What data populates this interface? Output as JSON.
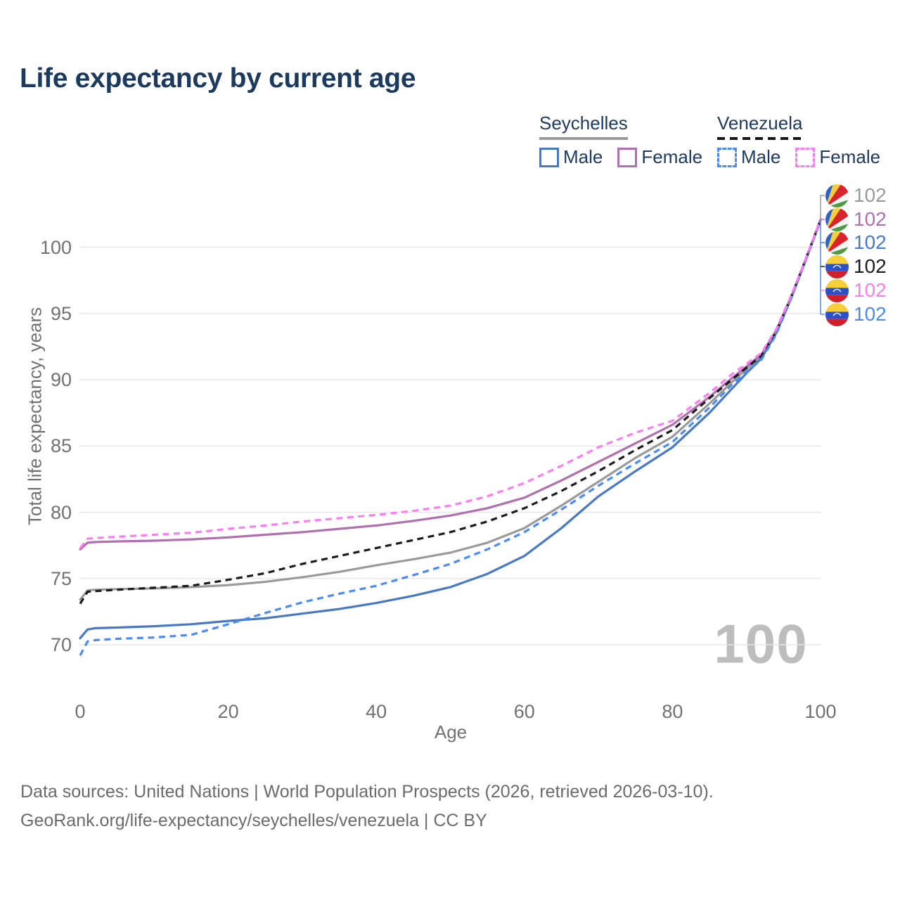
{
  "title": "Life expectancy by current age",
  "watermark": "100",
  "legend": {
    "groups": [
      {
        "label": "Seychelles",
        "items": [
          {
            "label": "Male",
            "color": "#4779c4",
            "dashed": false
          },
          {
            "label": "Female",
            "color": "#b06fae",
            "dashed": false
          }
        ]
      },
      {
        "label": "Venezuela",
        "items": [
          {
            "label": "Male",
            "color": "#4b8bf5",
            "dashed": true
          },
          {
            "label": "Female",
            "color": "#fb7df0",
            "dashed": true
          }
        ]
      }
    ]
  },
  "end_labels": [
    {
      "flag": "seychelles",
      "value": "102",
      "color": "#9a9a9a"
    },
    {
      "flag": "seychelles",
      "value": "102",
      "color": "#b06fae"
    },
    {
      "flag": "seychelles",
      "value": "102",
      "color": "#4779c4"
    },
    {
      "flag": "venezuela",
      "value": "102",
      "color": "#1c1c1c"
    },
    {
      "flag": "venezuela",
      "value": "102",
      "color": "#fb7df0"
    },
    {
      "flag": "venezuela",
      "value": "102",
      "color": "#4b8bf5"
    }
  ],
  "footer": {
    "line1": "Data sources: United Nations | World Population Prospects (2026, retrieved 2026-03-10).",
    "line2": "GeoRank.org/life-expectancy/seychelles/venezuela | CC BY"
  },
  "chart_data": {
    "type": "line",
    "title": "Life expectancy by current age",
    "xlabel": "Age",
    "ylabel": "Total life expectancy, years",
    "xticks": [
      0,
      20,
      40,
      60,
      80,
      100
    ],
    "yticks": [
      70,
      75,
      80,
      85,
      90,
      95,
      100
    ],
    "xlim": [
      0,
      100
    ],
    "ylim": [
      68.5,
      103
    ],
    "grid": "horizontal-only",
    "grid_color": "#e7e7e7",
    "legend_position": "top-right",
    "x": [
      0,
      1,
      2,
      5,
      10,
      15,
      20,
      25,
      30,
      35,
      40,
      45,
      50,
      55,
      60,
      65,
      70,
      75,
      80,
      85,
      88,
      90,
      92,
      94,
      96,
      98,
      100
    ],
    "series": [
      {
        "id": "seychelles-both",
        "name": "Seychelles (both sexes)",
        "color": "#9a9a9a",
        "dashed": false,
        "end_value": 102,
        "values": [
          73.4,
          74.1,
          74.15,
          74.2,
          74.25,
          74.35,
          74.5,
          74.75,
          75.1,
          75.5,
          76.0,
          76.45,
          76.95,
          77.7,
          78.8,
          80.5,
          82.3,
          84.1,
          85.7,
          88.2,
          89.8,
          90.8,
          91.7,
          93.6,
          96.2,
          99.0,
          102.0
        ]
      },
      {
        "id": "seychelles-male",
        "name": "Seychelles Male",
        "color": "#4779c4",
        "dashed": false,
        "end_value": 102,
        "values": [
          70.5,
          71.15,
          71.25,
          71.3,
          71.4,
          71.55,
          71.8,
          72.0,
          72.35,
          72.7,
          73.15,
          73.7,
          74.35,
          75.35,
          76.7,
          78.8,
          81.2,
          83.1,
          84.9,
          87.5,
          89.3,
          90.5,
          91.6,
          93.5,
          96.1,
          99.0,
          102.1
        ]
      },
      {
        "id": "seychelles-female",
        "name": "Seychelles Female",
        "color": "#b06fae",
        "dashed": false,
        "end_value": 102,
        "values": [
          77.2,
          77.7,
          77.75,
          77.8,
          77.85,
          77.95,
          78.1,
          78.3,
          78.5,
          78.75,
          79.0,
          79.35,
          79.75,
          80.3,
          81.1,
          82.4,
          83.8,
          85.2,
          86.6,
          88.7,
          90.1,
          91.0,
          91.9,
          93.7,
          96.2,
          99.1,
          102.1
        ]
      },
      {
        "id": "venezuela-both",
        "name": "Venezuela (both sexes)",
        "color": "#1c1c1c",
        "dashed": true,
        "end_value": 102,
        "values": [
          73.1,
          74.0,
          74.05,
          74.15,
          74.3,
          74.45,
          74.9,
          75.4,
          76.1,
          76.7,
          77.3,
          77.9,
          78.5,
          79.3,
          80.3,
          81.6,
          83.1,
          84.7,
          86.2,
          88.6,
          90.0,
          90.9,
          91.8,
          93.6,
          96.2,
          99.1,
          102.0
        ]
      },
      {
        "id": "venezuela-male",
        "name": "Venezuela Male",
        "color": "#4b8bf5",
        "dashed": true,
        "end_value": 102,
        "values": [
          69.2,
          70.25,
          70.35,
          70.45,
          70.55,
          70.75,
          71.55,
          72.4,
          73.2,
          73.85,
          74.45,
          75.25,
          76.1,
          77.2,
          78.5,
          80.2,
          82.0,
          83.7,
          85.3,
          87.9,
          89.6,
          90.6,
          91.5,
          93.4,
          96.1,
          99.0,
          102.0
        ]
      },
      {
        "id": "venezuela-female",
        "name": "Venezuela Female",
        "color": "#fb7df0",
        "dashed": true,
        "end_value": 102,
        "values": [
          77.3,
          78.0,
          78.05,
          78.15,
          78.3,
          78.45,
          78.75,
          79.0,
          79.3,
          79.55,
          79.8,
          80.1,
          80.5,
          81.2,
          82.2,
          83.5,
          84.9,
          86.0,
          86.9,
          89.0,
          90.4,
          91.2,
          92.0,
          93.8,
          96.3,
          99.1,
          102.1
        ]
      }
    ]
  }
}
